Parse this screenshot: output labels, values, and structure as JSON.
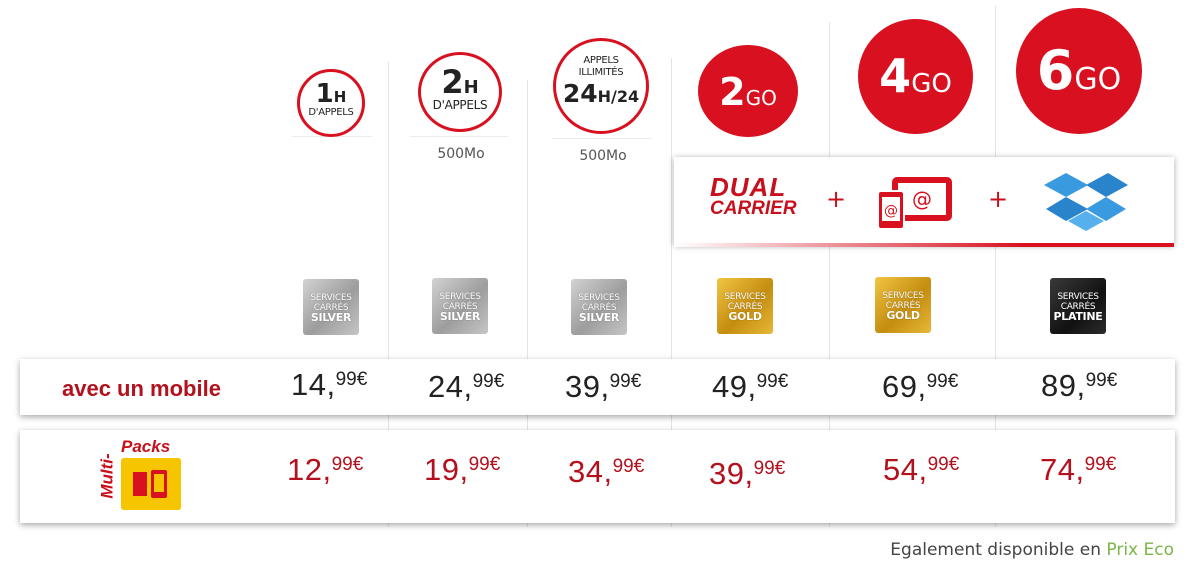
{
  "plans": [
    {
      "badge_big": "1",
      "badge_unit": "H",
      "badge_sub": "D'APPELS",
      "data": "",
      "tier_lines": [
        "SERVICES",
        "CARRÉS"
      ],
      "tier_name": "SILVER",
      "price_mobile": {
        "int": "14,",
        "dec": "99€"
      },
      "price_multi": {
        "int": "12,",
        "dec": "99€"
      }
    },
    {
      "badge_big": "2",
      "badge_unit": "H",
      "badge_sub": "D'APPELS",
      "data": "500Mo",
      "tier_lines": [
        "SERVICES",
        "CARRÉS"
      ],
      "tier_name": "SILVER",
      "price_mobile": {
        "int": "24,",
        "dec": "99€"
      },
      "price_multi": {
        "int": "19,",
        "dec": "99€"
      }
    },
    {
      "badge_top": "APPELS ILLIMITÉS",
      "badge_big": "24",
      "badge_unit": "H/24",
      "data": "500Mo",
      "tier_lines": [
        "SERVICES",
        "CARRÉS"
      ],
      "tier_name": "SILVER",
      "price_mobile": {
        "int": "39,",
        "dec": "99€"
      },
      "price_multi": {
        "int": "34,",
        "dec": "99€"
      }
    },
    {
      "badge_big": "2",
      "badge_unit": "GO",
      "data": "",
      "tier_lines": [
        "SERVICES",
        "CARRÉS"
      ],
      "tier_name": "GOLD",
      "price_mobile": {
        "int": "49,",
        "dec": "99€"
      },
      "price_multi": {
        "int": "39,",
        "dec": "99€"
      }
    },
    {
      "badge_big": "4",
      "badge_unit": "GO",
      "data": "",
      "tier_lines": [
        "SERVICES",
        "CARRÉS"
      ],
      "tier_name": "GOLD",
      "price_mobile": {
        "int": "69,",
        "dec": "99€"
      },
      "price_multi": {
        "int": "54,",
        "dec": "99€"
      }
    },
    {
      "badge_big": "6",
      "badge_unit": "GO",
      "data": "",
      "tier_lines": [
        "SERVICES",
        "CARRÉS"
      ],
      "tier_name": "PLATINE",
      "price_mobile": {
        "int": "89,",
        "dec": "99€"
      },
      "price_multi": {
        "int": "74,",
        "dec": "99€"
      }
    }
  ],
  "features": {
    "dual_line1": "DUAL",
    "dual_line2": "CARRIER",
    "plus": "+",
    "device_icon": "tablet-phone-email-icon",
    "cloud_icon": "dropbox-box-icon"
  },
  "rows": {
    "mobile_label": "avec un mobile",
    "multi_label_1": "Multi-",
    "multi_label_2": "Packs",
    "multi_icon": "sim-card-phone-icon"
  },
  "footer": {
    "text": "Egalement disponible en",
    "link": "Prix Eco"
  },
  "colors": {
    "brand_red": "#d8101f",
    "price_red": "#b2111d",
    "prix_eco_green": "#7bb547"
  }
}
